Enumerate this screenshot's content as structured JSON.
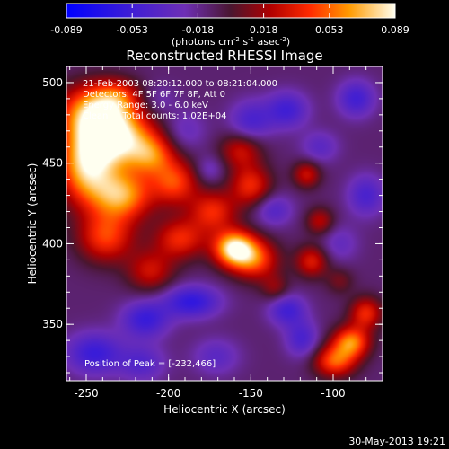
{
  "chart_data": {
    "type": "heatmap",
    "title": "Reconstructed RHESSI Image",
    "xlabel": "Heliocentric X (arcsec)",
    "ylabel": "Heliocentric Y (arcsec)",
    "xlim": [
      -262,
      -70
    ],
    "ylim": [
      315,
      510
    ],
    "xticks": [
      -250,
      -200,
      -150,
      -100
    ],
    "yticks": [
      350,
      400,
      450,
      500
    ],
    "colorbar": {
      "range": [
        -0.089,
        0.089
      ],
      "ticks": [
        "-0.089",
        "-0.053",
        "-0.018",
        "0.018",
        "0.053",
        "0.089"
      ],
      "unit_label": "(photons cm",
      "unit_exp1": "-2",
      "unit_mid": " s",
      "unit_exp2": "-1",
      "unit_end": " asec",
      "unit_exp3": "-2",
      "unit_close": ")"
    },
    "annotations": [
      "21-Feb-2003 08:20:12.000 to 08:21:04.000",
      "Detectors: 4F 5F 6F 7F 8F, Att 0",
      "Energy Range: 3.0 - 6.0 keV",
      "Clean     Total counts: 1.02E+04"
    ],
    "peak_text": "Position of Peak = [-232,466]",
    "sources": [
      {
        "x": -232,
        "y": 466,
        "amp": 0.095,
        "sx": 16,
        "sy": 13
      },
      {
        "x": -247,
        "y": 482,
        "amp": 0.07,
        "sx": 14,
        "sy": 12
      },
      {
        "x": -250,
        "y": 447,
        "amp": 0.08,
        "sx": 12,
        "sy": 16
      },
      {
        "x": -228,
        "y": 430,
        "amp": 0.075,
        "sx": 13,
        "sy": 11
      },
      {
        "x": -238,
        "y": 404,
        "amp": 0.055,
        "sx": 12,
        "sy": 11
      },
      {
        "x": -210,
        "y": 455,
        "amp": 0.05,
        "sx": 10,
        "sy": 9
      },
      {
        "x": -196,
        "y": 438,
        "amp": 0.055,
        "sx": 10,
        "sy": 10
      },
      {
        "x": -193,
        "y": 403,
        "amp": 0.05,
        "sx": 11,
        "sy": 9
      },
      {
        "x": -173,
        "y": 420,
        "amp": 0.05,
        "sx": 10,
        "sy": 9
      },
      {
        "x": -160,
        "y": 397,
        "amp": 0.095,
        "sx": 9,
        "sy": 8
      },
      {
        "x": -147,
        "y": 390,
        "amp": 0.055,
        "sx": 10,
        "sy": 9
      },
      {
        "x": -150,
        "y": 436,
        "amp": 0.05,
        "sx": 9,
        "sy": 9
      },
      {
        "x": -156,
        "y": 458,
        "amp": 0.04,
        "sx": 9,
        "sy": 8
      },
      {
        "x": -211,
        "y": 383,
        "amp": 0.04,
        "sx": 10,
        "sy": 9
      },
      {
        "x": -113,
        "y": 389,
        "amp": 0.045,
        "sx": 7,
        "sy": 7
      },
      {
        "x": -116,
        "y": 443,
        "amp": 0.04,
        "sx": 6,
        "sy": 6
      },
      {
        "x": -108,
        "y": 414,
        "amp": 0.035,
        "sx": 6,
        "sy": 6
      },
      {
        "x": -89,
        "y": 339,
        "amp": 0.07,
        "sx": 8,
        "sy": 7
      },
      {
        "x": -99,
        "y": 327,
        "amp": 0.06,
        "sx": 9,
        "sy": 7
      },
      {
        "x": -80,
        "y": 357,
        "amp": 0.05,
        "sx": 7,
        "sy": 7
      },
      {
        "x": -231,
        "y": 491,
        "amp": 0.04,
        "sx": 10,
        "sy": 8
      },
      {
        "x": -190,
        "y": 470,
        "amp": -0.02,
        "sx": 9,
        "sy": 9
      },
      {
        "x": -175,
        "y": 446,
        "amp": -0.02,
        "sx": 6,
        "sy": 6
      },
      {
        "x": -206,
        "y": 489,
        "amp": -0.015,
        "sx": 8,
        "sy": 7
      },
      {
        "x": -186,
        "y": 364,
        "amp": -0.05,
        "sx": 12,
        "sy": 7
      },
      {
        "x": -214,
        "y": 353,
        "amp": -0.045,
        "sx": 10,
        "sy": 8
      },
      {
        "x": -245,
        "y": 332,
        "amp": -0.045,
        "sx": 12,
        "sy": 9
      },
      {
        "x": -216,
        "y": 326,
        "amp": -0.03,
        "sx": 10,
        "sy": 8
      },
      {
        "x": -171,
        "y": 330,
        "amp": -0.025,
        "sx": 10,
        "sy": 8
      },
      {
        "x": -128,
        "y": 359,
        "amp": -0.04,
        "sx": 8,
        "sy": 7
      },
      {
        "x": -119,
        "y": 341,
        "amp": -0.035,
        "sx": 7,
        "sy": 8
      },
      {
        "x": -136,
        "y": 421,
        "amp": -0.03,
        "sx": 8,
        "sy": 7
      },
      {
        "x": -128,
        "y": 483,
        "amp": -0.04,
        "sx": 9,
        "sy": 8
      },
      {
        "x": -108,
        "y": 460,
        "amp": -0.025,
        "sx": 8,
        "sy": 7
      },
      {
        "x": -86,
        "y": 490,
        "amp": -0.04,
        "sx": 8,
        "sy": 8
      },
      {
        "x": -80,
        "y": 430,
        "amp": -0.035,
        "sx": 8,
        "sy": 9
      },
      {
        "x": -96,
        "y": 400,
        "amp": -0.02,
        "sx": 8,
        "sy": 8
      },
      {
        "x": -150,
        "y": 476,
        "amp": -0.035,
        "sx": 9,
        "sy": 9
      },
      {
        "x": -96,
        "y": 377,
        "amp": 0.02,
        "sx": 6,
        "sy": 6
      },
      {
        "x": -135,
        "y": 372,
        "amp": 0.025,
        "sx": 6,
        "sy": 6
      }
    ],
    "background": -0.012
  },
  "footer_date": "30-May-2013 19:21"
}
